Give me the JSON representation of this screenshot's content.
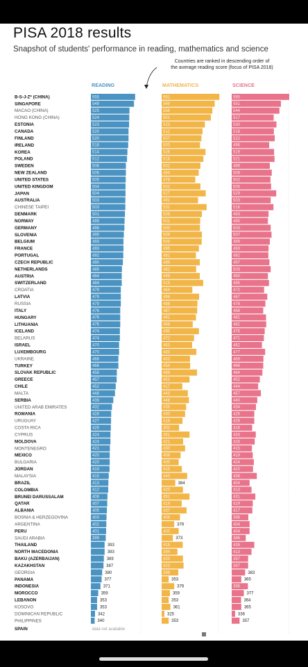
{
  "header": {
    "title": "PISA 2018 results",
    "subtitle": "Snapshot of students' performance in reading, mathematics and science",
    "note_line1": "Countries are ranked in descending order of",
    "note_line2": "the average reading score (focus of PISA 2018)"
  },
  "colors": {
    "reading": "#4a93c2",
    "mathematics": "#f1b548",
    "science": "#e8738a"
  },
  "chart_data": {
    "type": "bar",
    "series": [
      {
        "name": "READING",
        "values": [
          555,
          549,
          525,
          524,
          523,
          520,
          520,
          518,
          514,
          512,
          506,
          506,
          505,
          504,
          504,
          503,
          503,
          501,
          499,
          498,
          495,
          493,
          493,
          492,
          490,
          485,
          484,
          484,
          479,
          479,
          479,
          476,
          476,
          476,
          474,
          474,
          470,
          470,
          466,
          466,
          458,
          457,
          452,
          448,
          439,
          432,
          428,
          427,
          426,
          424,
          424,
          421,
          420,
          420,
          419,
          415,
          413,
          412,
          408,
          407,
          405,
          403,
          402,
          401,
          399,
          393,
          393,
          389,
          387,
          380,
          377,
          371,
          359,
          353,
          353,
          342,
          340
        ],
        "labels": [
          "555",
          "549",
          "525",
          "524",
          "523",
          "520",
          "520",
          "518",
          "514",
          "512",
          "506",
          "506",
          "505",
          "504",
          "504",
          "503",
          "503",
          "501",
          "499",
          "498",
          "495",
          "493",
          "493",
          "492",
          "490",
          "485",
          "484",
          "484",
          "479",
          "479",
          "479",
          "476",
          "476",
          "476",
          "474",
          "474",
          "470",
          "470",
          "466",
          "466",
          "458",
          "457",
          "452",
          "448",
          "439",
          "432",
          "428",
          "427",
          "426",
          "424",
          "424",
          "421",
          "420",
          "420",
          "419",
          "415",
          "413",
          "412",
          "408",
          "407",
          "405",
          "403",
          "402",
          "401",
          "399",
          "393",
          "393",
          "389",
          "387",
          "380",
          "377",
          "371",
          "359",
          "353",
          "353",
          "342",
          "340"
        ]
      },
      {
        "name": "MATHEMATICS",
        "values": [
          591,
          569,
          558,
          551,
          523,
          512,
          507,
          500,
          526,
          516,
          502,
          494,
          478,
          502,
          527,
          491,
          531,
          509,
          501,
          500,
          509,
          508,
          495,
          481,
          499,
          482,
          499,
          515,
          464,
          496,
          488,
          487,
          481,
          466,
          495,
          472,
          463,
          483,
          453,
          454,
          486,
          451,
          417,
          443,
          448,
          435,
          430,
          418,
          402,
          451,
          421,
          430,
          409,
          400,
          415,
          440,
          384,
          420,
          451,
          414,
          437,
          406,
          379,
          400,
          373,
          419,
          394,
          420,
          423,
          398,
          353,
          379,
          359,
          353,
          361,
          325,
          353
        ],
        "labels": [
          "591",
          "569",
          "558",
          "551",
          "523",
          "512",
          "507",
          "500",
          "526",
          "516",
          "502",
          "494",
          "478",
          "502",
          "527",
          "491",
          "531",
          "509",
          "501",
          "500",
          "509",
          "508",
          "495",
          "481",
          "499",
          "482",
          "499",
          "515",
          "464",
          "496",
          "488",
          "487",
          "481",
          "466",
          "495",
          "472",
          "463",
          "483",
          "453",
          "454",
          "486",
          "451",
          "417",
          "443",
          "448",
          "435",
          "430",
          "418",
          "402",
          "451",
          "421",
          "430",
          "409",
          "400",
          "415",
          "440",
          "384",
          "420",
          "451",
          "414",
          "437",
          "406",
          "379",
          "400",
          "373",
          "419",
          "394",
          "420",
          "423",
          "398",
          "353",
          "379",
          "359",
          "353",
          "361",
          "325",
          "353"
        ]
      },
      {
        "name": "SCIENCE",
        "values": [
          590,
          551,
          544,
          517,
          530,
          518,
          522,
          496,
          519,
          521,
          499,
          508,
          502,
          505,
          529,
          503,
          516,
          493,
          490,
          503,
          507,
          499,
          493,
          492,
          497,
          503,
          490,
          495,
          472,
          487,
          478,
          468,
          481,
          482,
          475,
          471,
          462,
          477,
          469,
          468,
          464,
          452,
          444,
          457,
          440,
          434,
          426,
          426,
          416,
          433,
          428,
          415,
          419,
          424,
          420,
          438,
          404,
          413,
          431,
          419,
          417,
          398,
          404,
          404,
          386,
          426,
          413,
          397,
          397,
          383,
          365,
          396,
          377,
          364,
          365,
          336,
          357
        ],
        "labels": [
          "590",
          "551",
          "544",
          "517",
          "530",
          "518",
          "522",
          "496",
          "519",
          "521",
          "499",
          "508",
          "502",
          "505",
          "529",
          "503",
          "516",
          "493",
          "490",
          "503",
          "507",
          "499",
          "493",
          "492",
          "497",
          "503",
          "490",
          "495",
          "472",
          "487",
          "478",
          "468",
          "481",
          "482",
          "475",
          "471",
          "462",
          "477",
          "469",
          "468",
          "464",
          "452",
          "444",
          "457",
          "440",
          "434",
          "426",
          "426",
          "416",
          "433",
          "428",
          "415",
          "419",
          "424",
          "420",
          "438",
          "404",
          "413",
          "431",
          "419",
          "417",
          "398",
          "404",
          "404",
          "386",
          "426",
          "413",
          "397",
          "397",
          "383",
          "365",
          "396",
          "377",
          "364",
          "365",
          "336",
          "357"
        ]
      }
    ],
    "categories": [
      "B-S-J-Z* (CHINA)",
      "SINGAPORE",
      "MACAO (CHINA)",
      "HONG KONG (CHINA)",
      "ESTONIA",
      "CANADA",
      "FINLAND",
      "IRELAND",
      "KOREA",
      "POLAND",
      "SWEDEN",
      "NEW ZEALAND",
      "UNITED STATES",
      "UNITED KINGDOM",
      "JAPAN",
      "AUSTRALIA",
      "CHINESE TAIPEI",
      "DENMARK",
      "NORWAY",
      "GERMANY",
      "SLOVENIA",
      "BELGIUM",
      "FRANCE",
      "PORTUGAL",
      "CZECH REPUBLIC",
      "NETHERLANDS",
      "AUSTRIA",
      "SWITZERLAND",
      "CROATIA",
      "LATVIA",
      "RUSSIA",
      "ITALY",
      "HUNGARY",
      "LITHUANIA",
      "ICELAND",
      "BELARUS",
      "ISRAEL",
      "LUXEMBOURG",
      "UKRAINE",
      "TURKEY",
      "SLOVAK REPUBLIC",
      "GREECE",
      "CHILE",
      "MALTA",
      "SERBIA",
      "UNITED ARAB EMIRATES",
      "ROMANIA",
      "URUGUAY",
      "COSTA RICA",
      "CYPRUS",
      "MOLDOVA",
      "MONTENEGRO",
      "MEXICO",
      "BULGARIA",
      "JORDAN",
      "MALAYSIA",
      "BRAZIL",
      "COLOMBIA",
      "BRUNEI DARUSSALAM",
      "QATAR",
      "ALBANIA",
      "BOSNIA & HERZEGOVINA",
      "ARGENTINA",
      "PERU",
      "SAUDI ARABIA",
      "THAILAND",
      "NORTH MACEDONIA",
      "BAKU (AZERBAIJAN)",
      "KAZAKHSTAN",
      "GEORGIA",
      "PANAMA",
      "INDONESIA",
      "MOROCCO",
      "LEBANON",
      "KOSOVO",
      "DOMINICAN REPUBLIC",
      "PHILIPPINES"
    ],
    "category_emphasis": [
      1,
      1,
      0,
      0,
      1,
      1,
      1,
      1,
      1,
      1,
      1,
      1,
      1,
      1,
      1,
      1,
      0,
      1,
      1,
      1,
      1,
      1,
      1,
      1,
      1,
      1,
      1,
      1,
      0,
      1,
      0,
      1,
      1,
      1,
      1,
      0,
      1,
      1,
      0,
      1,
      1,
      1,
      1,
      0,
      1,
      0,
      1,
      0,
      0,
      0,
      1,
      0,
      1,
      0,
      1,
      0,
      1,
      1,
      1,
      1,
      1,
      0,
      0,
      1,
      0,
      1,
      1,
      1,
      1,
      0,
      1,
      1,
      1,
      1,
      0,
      0,
      0
    ],
    "footer_category": "SPAIN",
    "footer_note": "data not available",
    "xlim": [
      320,
      600
    ]
  }
}
